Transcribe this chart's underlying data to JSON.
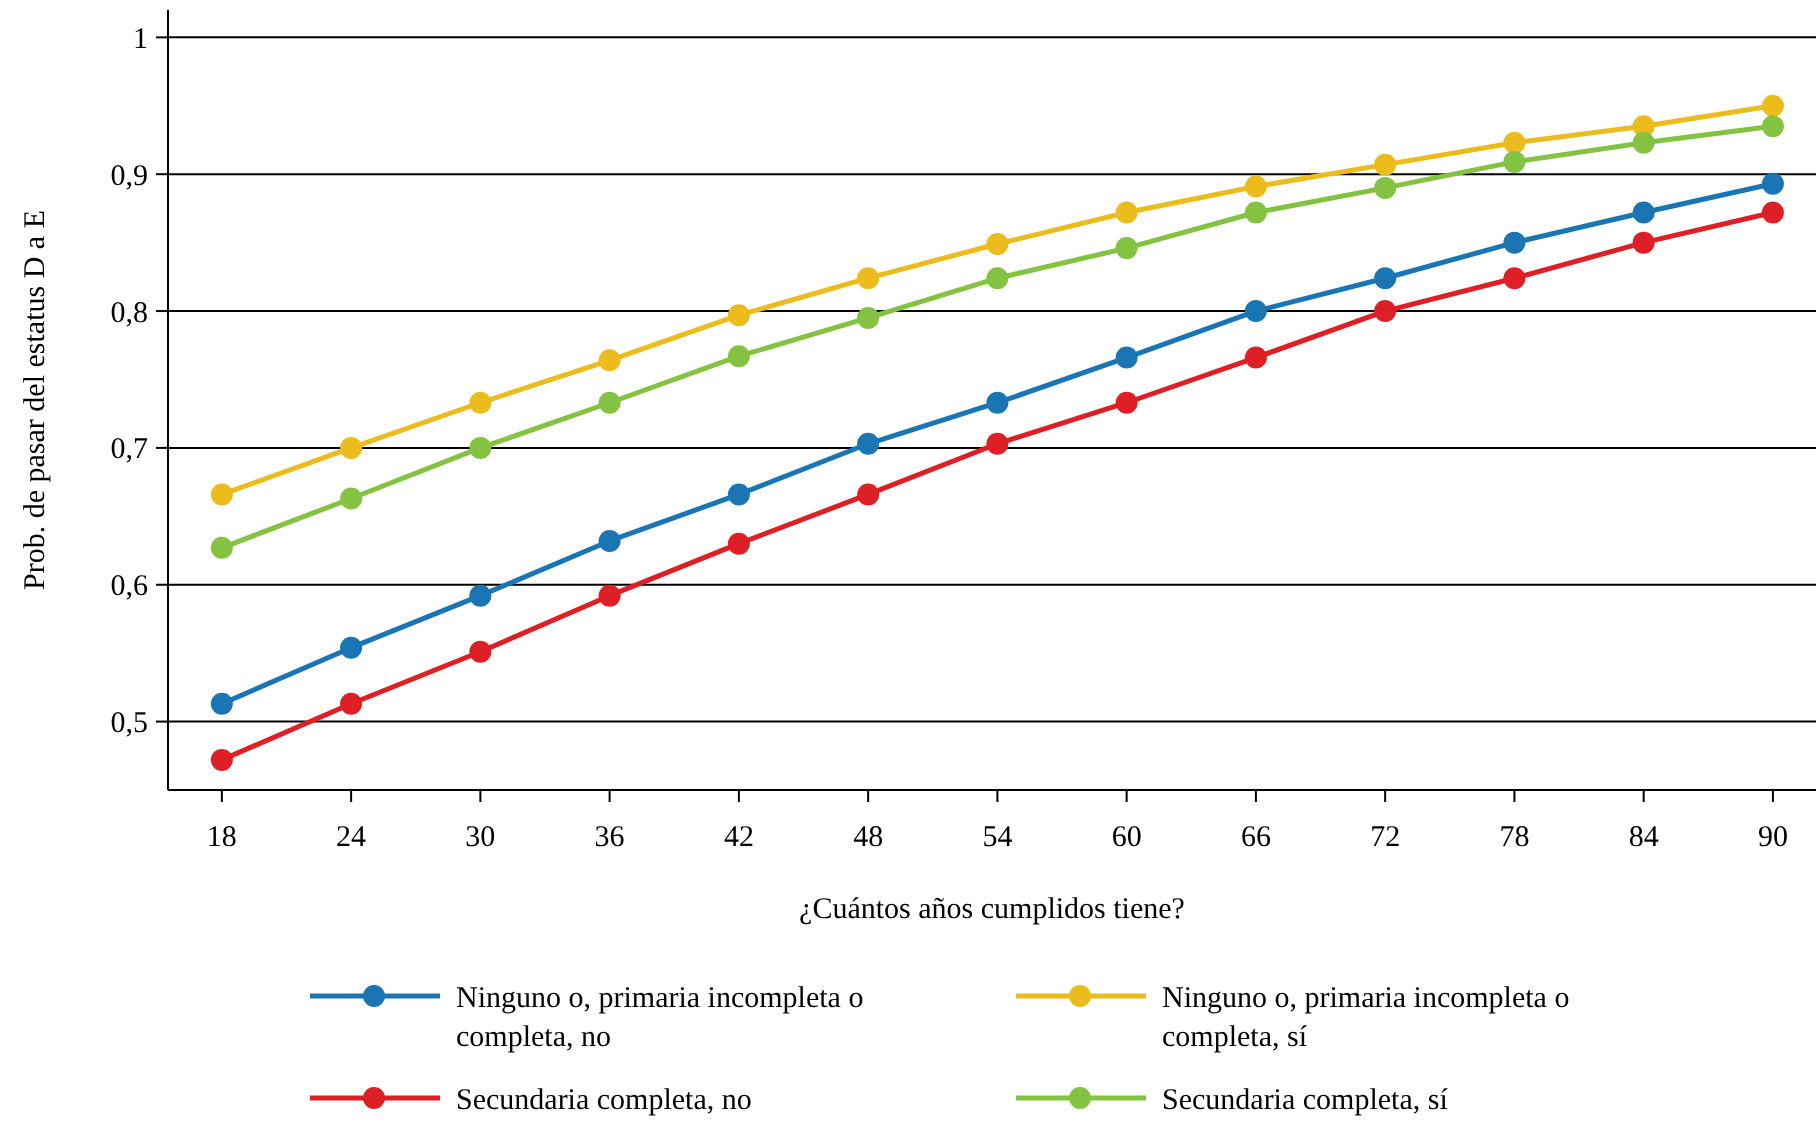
{
  "chart_data": {
    "type": "line",
    "xlabel": "¿Cuántos años cumplidos tiene?",
    "ylabel": "Prob. de pasar del estatus D a E",
    "x": [
      18,
      24,
      30,
      36,
      42,
      48,
      54,
      60,
      66,
      72,
      78,
      84,
      90
    ],
    "xlim": [
      15.5,
      92
    ],
    "xticks": [
      18,
      24,
      30,
      36,
      42,
      48,
      54,
      60,
      66,
      72,
      78,
      84,
      90
    ],
    "ylim": [
      0.45,
      1.02
    ],
    "yticks": [
      {
        "value": 0.5,
        "label": "0,5"
      },
      {
        "value": 0.6,
        "label": "0,6"
      },
      {
        "value": 0.7,
        "label": "0,7"
      },
      {
        "value": 0.8,
        "label": "0,8"
      },
      {
        "value": 0.9,
        "label": "0,9"
      },
      1
    ],
    "grid": "y",
    "legend": "bottom",
    "marker": "circle",
    "line_style": "solid",
    "series": [
      {
        "name": "Ninguno o, primaria incompleta o completa, no",
        "color": "#1a75b5",
        "values": [
          0.513,
          0.554,
          0.592,
          0.632,
          0.666,
          0.703,
          0.733,
          0.766,
          0.8,
          0.824,
          0.85,
          0.872,
          0.893
        ]
      },
      {
        "name": "Ninguno o, primaria incompleta o completa, sí",
        "color": "#ecbc1c",
        "values": [
          0.666,
          0.7,
          0.733,
          0.764,
          0.797,
          0.824,
          0.849,
          0.872,
          0.891,
          0.907,
          0.923,
          0.935,
          0.95
        ]
      },
      {
        "name": "Secundaria completa, no",
        "color": "#de1f26",
        "values": [
          0.472,
          0.513,
          0.551,
          0.592,
          0.63,
          0.666,
          0.703,
          0.733,
          0.766,
          0.8,
          0.824,
          0.85,
          0.872
        ]
      },
      {
        "name": "Secundaria completa, sí",
        "color": "#84c341",
        "values": [
          0.627,
          0.663,
          0.7,
          0.733,
          0.767,
          0.795,
          0.824,
          0.846,
          0.872,
          0.89,
          0.909,
          0.923,
          0.935
        ]
      }
    ]
  }
}
